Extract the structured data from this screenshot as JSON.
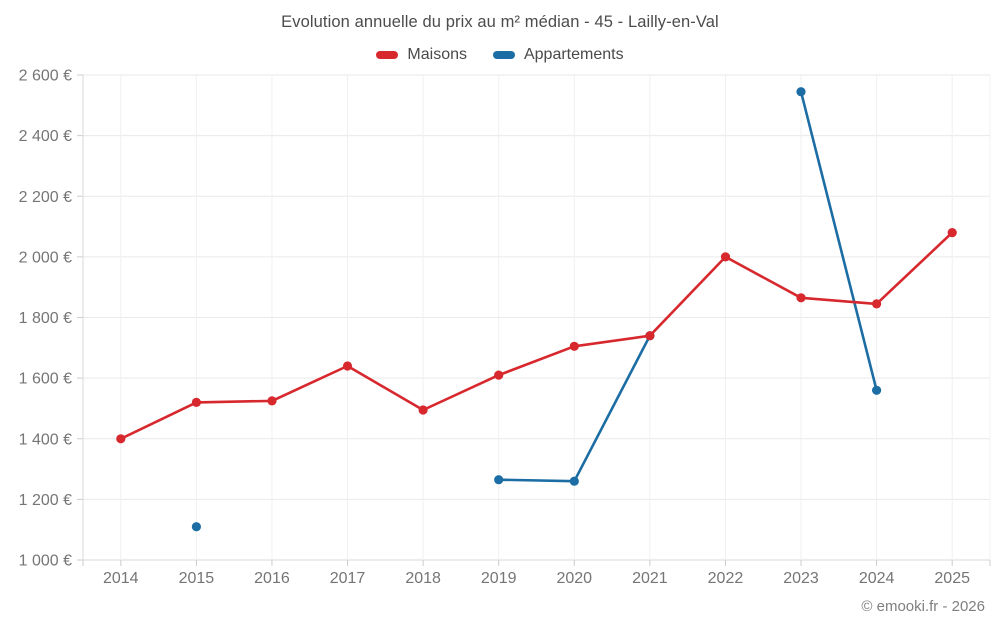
{
  "title": "Evolution annuelle du prix au m² médian - 45 - Lailly-en-Val",
  "footer": "© emooki.fr - 2026",
  "legend": [
    {
      "label": "Maisons",
      "color": "#d7282e"
    },
    {
      "label": "Appartements",
      "color": "#1b6da4"
    }
  ],
  "chart_data": {
    "type": "line",
    "title": "Evolution annuelle du prix au m² médian - 45 - Lailly-en-Val",
    "categories": [
      "2014",
      "2015",
      "2016",
      "2017",
      "2018",
      "2019",
      "2020",
      "2021",
      "2022",
      "2023",
      "2024",
      "2025"
    ],
    "series": [
      {
        "name": "Maisons",
        "color": "#d7282e",
        "values": [
          1400,
          1520,
          1525,
          1640,
          1495,
          1610,
          1705,
          1740,
          2000,
          1865,
          1845,
          2080
        ]
      },
      {
        "name": "Appartements",
        "color": "#1b6da4",
        "values": [
          null,
          1110,
          null,
          null,
          null,
          1265,
          1260,
          1740,
          null,
          2545,
          1560,
          null
        ]
      }
    ],
    "ylim": [
      1000,
      2600
    ],
    "ytick_step": 200,
    "ytick_suffix": " €",
    "grid": true,
    "legend_position": "top",
    "colors": {
      "h_gridline": "#e9e9e9",
      "v_gridline": "#f0f0f0",
      "axis_line": "#d9d9d9",
      "tick": "#cccccc",
      "tick_label": "#757575"
    }
  }
}
